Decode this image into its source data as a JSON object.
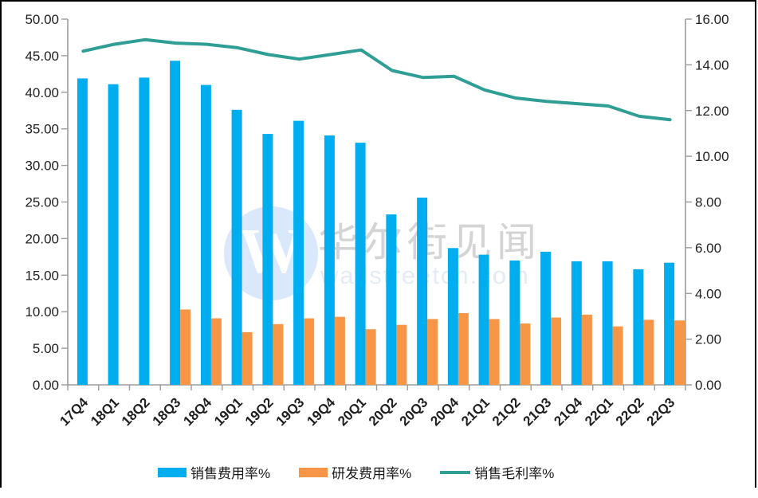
{
  "chart_data": {
    "type": "bar",
    "title": "",
    "categories": [
      "17Q4",
      "18Q1",
      "18Q2",
      "18Q3",
      "18Q4",
      "19Q1",
      "19Q2",
      "19Q3",
      "19Q4",
      "20Q1",
      "20Q2",
      "20Q3",
      "20Q4",
      "21Q1",
      "21Q2",
      "21Q3",
      "21Q4",
      "22Q1",
      "22Q2",
      "22Q3"
    ],
    "series": [
      {
        "name": "销售费用率%",
        "type": "bar",
        "axis": "left",
        "color": "#00AEEF",
        "values": [
          41.9,
          41.1,
          42.0,
          44.3,
          41.0,
          37.6,
          34.3,
          36.1,
          34.1,
          33.1,
          23.3,
          25.6,
          18.7,
          17.8,
          17.0,
          18.2,
          16.9,
          16.9,
          15.8,
          16.7
        ]
      },
      {
        "name": "研发费用率%",
        "type": "bar",
        "axis": "left",
        "color": "#F79646",
        "values": [
          null,
          null,
          null,
          10.3,
          9.1,
          7.2,
          8.3,
          9.1,
          9.3,
          7.6,
          8.2,
          9.0,
          9.8,
          9.0,
          8.4,
          9.2,
          9.6,
          8.0,
          8.9,
          8.8
        ]
      },
      {
        "name": "销售毛利率%",
        "type": "line",
        "axis": "right",
        "color": "#2F9E94",
        "values": [
          14.6,
          14.9,
          15.1,
          14.95,
          14.9,
          14.75,
          14.45,
          14.25,
          14.45,
          14.65,
          13.75,
          13.45,
          13.5,
          12.9,
          12.55,
          12.4,
          12.3,
          12.2,
          11.75,
          11.6
        ]
      }
    ],
    "left_axis": {
      "min": 0,
      "max": 50,
      "step": 5
    },
    "right_axis": {
      "min": 0,
      "max": 16,
      "step": 2
    },
    "grid": false,
    "legend_position": "bottom"
  },
  "watermark": {
    "logo_letter": "W",
    "brand": "华尔街见闻",
    "site": "wallstreetcn.com"
  },
  "colors": {
    "axis": "#9B9B9B",
    "tick_label": "#1f1f1f",
    "frame": "#000000",
    "watermark_circle": "#D9E8FA",
    "watermark_text": "#D4D4D4",
    "watermark_site": "#E4EBF5"
  }
}
